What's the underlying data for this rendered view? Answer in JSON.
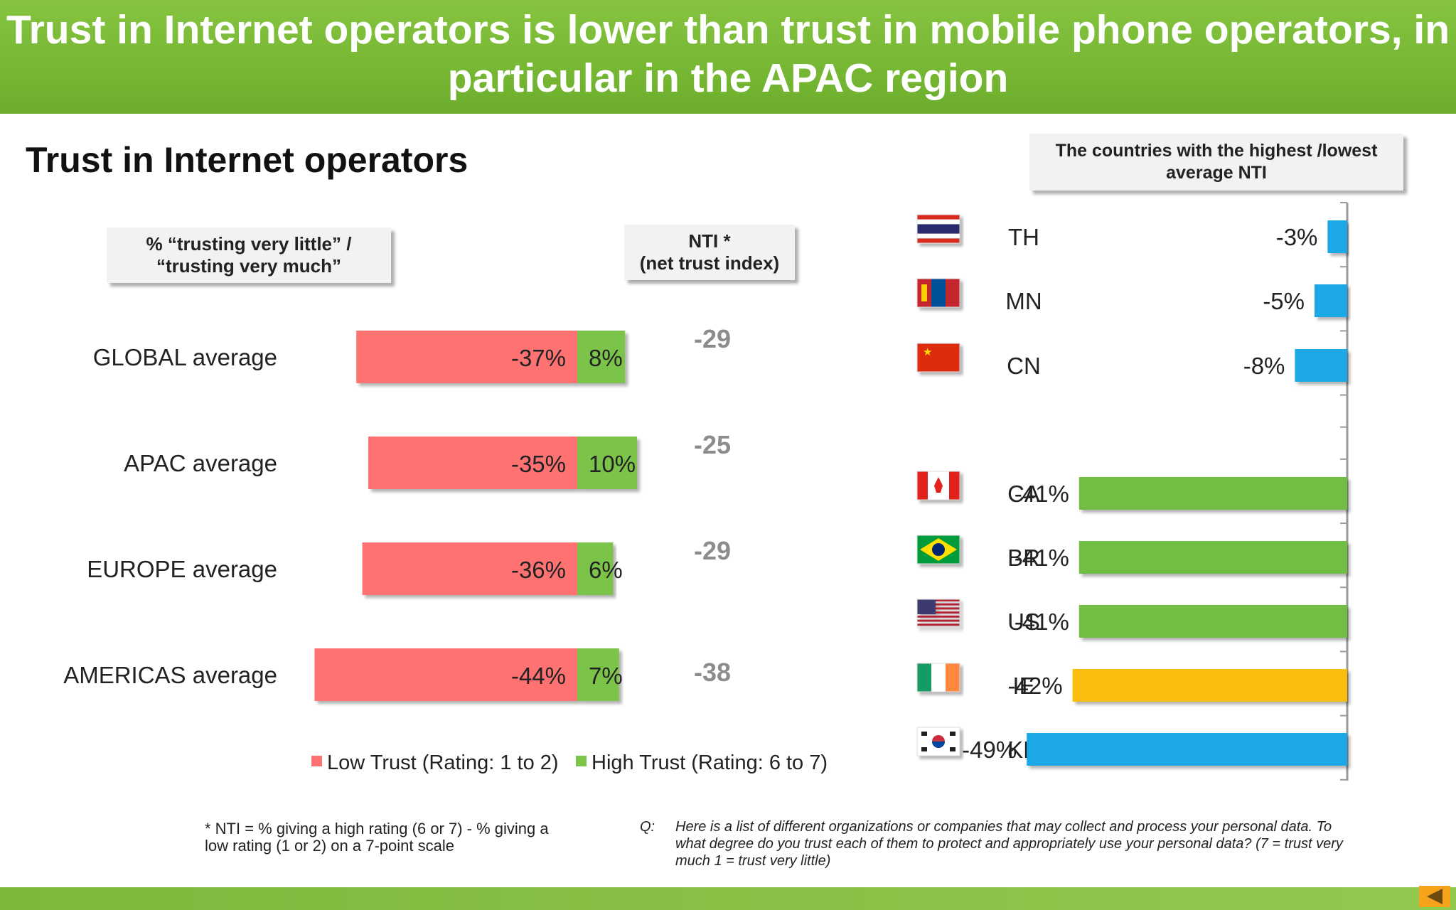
{
  "header": {
    "title": "Trust in Internet operators is lower than trust in mobile phone operators, in particular in the APAC region"
  },
  "section_title": "Trust in Internet operators",
  "callouts": {
    "pct_line1": "% “trusting very  little” /",
    "pct_line2": "“trusting very much”",
    "nti_line1": "NTI *",
    "nti_line2": "(net trust index)",
    "countries_line1": "The countries with the highest /lowest",
    "countries_line2": "average NTI"
  },
  "colors": {
    "low": "#fe7272",
    "high": "#7cc44a",
    "nti_text": "#8c8c8c",
    "blue": "#1ca8e6",
    "green": "#72be44",
    "orange": "#fbbd0f",
    "banner": "#7ab93a"
  },
  "chart_data": [
    {
      "type": "bar",
      "orientation": "horizontal-stacked-diverging",
      "categories": [
        "GLOBAL average",
        "APAC average",
        "EUROPE average",
        "AMERICAS average"
      ],
      "series": [
        {
          "name": "Low Trust (Rating: 1 to 2)",
          "values": [
            -37,
            -35,
            -36,
            -44
          ],
          "labels": [
            "-37%",
            "-35%",
            "-36%",
            "-44%"
          ],
          "color": "#fe7272"
        },
        {
          "name": "High Trust (Rating: 6 to 7)",
          "values": [
            8,
            10,
            6,
            7
          ],
          "labels": [
            "8%",
            "10%",
            "6%",
            "7%"
          ],
          "color": "#7cc44a"
        }
      ],
      "nti": [
        -29,
        -25,
        -29,
        -38
      ],
      "nti_labels": [
        "-29",
        "-25",
        "-29",
        "-38"
      ],
      "legend": "bottom"
    },
    {
      "type": "bar",
      "orientation": "horizontal",
      "categories": [
        "TH",
        "MN",
        "CN",
        "CA",
        "BR",
        "US",
        "IE",
        "KR"
      ],
      "values": [
        -3,
        -5,
        -8,
        -41,
        -41,
        -41,
        -42,
        -49
      ],
      "labels": [
        "-3%",
        "-5%",
        "-8%",
        "-41%",
        "-41%",
        "-41%",
        "-42%",
        "-49%"
      ],
      "colors": [
        "#1ca8e6",
        "#1ca8e6",
        "#1ca8e6",
        "#72be44",
        "#72be44",
        "#72be44",
        "#fbbd0f",
        "#1ca8e6"
      ],
      "flags": [
        "thailand-flag-icon",
        "mongolia-flag-icon",
        "china-flag-icon",
        "canada-flag-icon",
        "brazil-flag-icon",
        "usa-flag-icon",
        "ireland-flag-icon",
        "south-korea-flag-icon"
      ]
    }
  ],
  "footnotes": {
    "nti_line1": "* NTI = % giving a high rating (6 or 7) - % giving a",
    "nti_line2": "low rating (1 or 2) on a 7-point scale",
    "q_label": "Q:",
    "q_line1": "Here is a list of different organizations or companies that may collect and process your personal data.  To",
    "q_line2": "what degree do you trust each of them to protect and appropriately use your personal data? (7 = trust very",
    "q_line3": "much 1 = trust very little)"
  }
}
